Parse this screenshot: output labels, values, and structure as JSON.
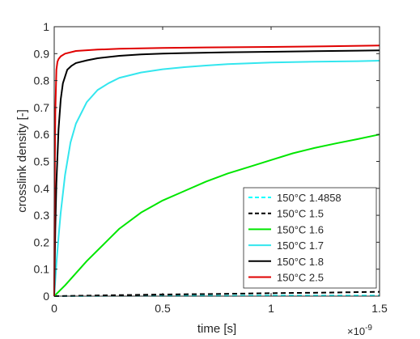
{
  "chart_data": {
    "type": "line",
    "xlabel": "time [s]",
    "ylabel": "crosslink density [-]",
    "x_multiplier_label": "×10",
    "x_multiplier_exponent": "-9",
    "xlim": [
      0,
      1.5
    ],
    "ylim": [
      0,
      1
    ],
    "x_ticks": [
      0,
      0.5,
      1,
      1.5
    ],
    "x_tick_labels": [
      "0",
      "0.5",
      "1",
      "1.5"
    ],
    "y_ticks": [
      0,
      0.1,
      0.2,
      0.3,
      0.4,
      0.5,
      0.6,
      0.7,
      0.8,
      0.9,
      1
    ],
    "y_tick_labels": [
      "0",
      "0.1",
      "0.2",
      "0.3",
      "0.4",
      "0.5",
      "0.6",
      "0.7",
      "0.8",
      "0.9",
      "1"
    ],
    "grid": false,
    "legend_position": "bottom-right",
    "series": [
      {
        "name": "150°C 1.4858",
        "color": "#00ffff",
        "dash": "dashed",
        "x": [
          0,
          0.25,
          0.5,
          0.75,
          1.0,
          1.25,
          1.5
        ],
        "y": [
          0,
          0.001,
          0.001,
          0.001,
          0.002,
          0.002,
          0.002
        ]
      },
      {
        "name": "150°C 1.5",
        "color": "#000000",
        "dash": "dashed",
        "x": [
          0,
          0.25,
          0.5,
          0.75,
          1.0,
          1.25,
          1.5
        ],
        "y": [
          0,
          0.003,
          0.006,
          0.008,
          0.011,
          0.013,
          0.016
        ]
      },
      {
        "name": "150°C 1.6",
        "color": "#00e600",
        "dash": "solid",
        "x": [
          0,
          0.05,
          0.1,
          0.15,
          0.2,
          0.25,
          0.3,
          0.4,
          0.5,
          0.6,
          0.7,
          0.8,
          0.9,
          1.0,
          1.1,
          1.2,
          1.3,
          1.4,
          1.5
        ],
        "y": [
          0,
          0.04,
          0.085,
          0.13,
          0.17,
          0.21,
          0.25,
          0.31,
          0.355,
          0.39,
          0.425,
          0.455,
          0.48,
          0.505,
          0.53,
          0.55,
          0.567,
          0.583,
          0.6
        ]
      },
      {
        "name": "150°C 1.7",
        "color": "#33e6ee",
        "dash": "solid",
        "x": [
          0,
          0.01,
          0.02,
          0.03,
          0.05,
          0.075,
          0.1,
          0.15,
          0.2,
          0.25,
          0.3,
          0.4,
          0.5,
          0.6,
          0.7,
          0.8,
          0.9,
          1.0,
          1.2,
          1.4,
          1.5
        ],
        "y": [
          0,
          0.12,
          0.22,
          0.31,
          0.45,
          0.57,
          0.64,
          0.72,
          0.765,
          0.79,
          0.81,
          0.83,
          0.842,
          0.85,
          0.856,
          0.861,
          0.864,
          0.867,
          0.87,
          0.872,
          0.874
        ]
      },
      {
        "name": "150°C 1.8",
        "color": "#000000",
        "dash": "solid",
        "x": [
          0,
          0.005,
          0.01,
          0.02,
          0.03,
          0.04,
          0.06,
          0.08,
          0.1,
          0.15,
          0.2,
          0.3,
          0.4,
          0.5,
          0.6,
          0.8,
          1.0,
          1.2,
          1.4,
          1.5
        ],
        "y": [
          0,
          0.25,
          0.42,
          0.62,
          0.73,
          0.79,
          0.84,
          0.855,
          0.865,
          0.875,
          0.883,
          0.892,
          0.897,
          0.9,
          0.902,
          0.905,
          0.907,
          0.909,
          0.911,
          0.912
        ]
      },
      {
        "name": "150°C 2.5",
        "color": "#e00000",
        "dash": "solid",
        "x": [
          0,
          0.002,
          0.005,
          0.01,
          0.015,
          0.02,
          0.03,
          0.05,
          0.1,
          0.2,
          0.3,
          0.5,
          0.7,
          1.0,
          1.25,
          1.5
        ],
        "y": [
          0,
          0.4,
          0.68,
          0.84,
          0.87,
          0.88,
          0.89,
          0.9,
          0.91,
          0.915,
          0.918,
          0.921,
          0.923,
          0.925,
          0.927,
          0.93
        ]
      }
    ]
  }
}
